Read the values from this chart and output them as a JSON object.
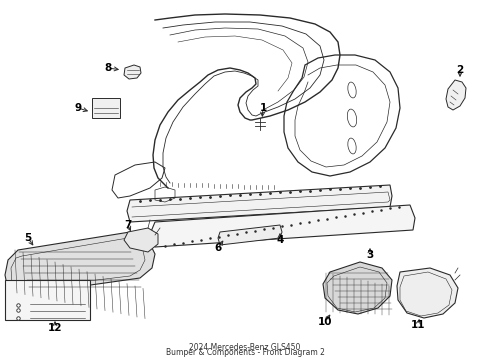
{
  "title": "2024 Mercedes-Benz GLS450\nBumper & Components - Front Diagram 2",
  "background_color": "#ffffff",
  "line_color": "#2a2a2a",
  "label_color": "#000000",
  "fig_width": 4.9,
  "fig_height": 3.6,
  "dpi": 100
}
